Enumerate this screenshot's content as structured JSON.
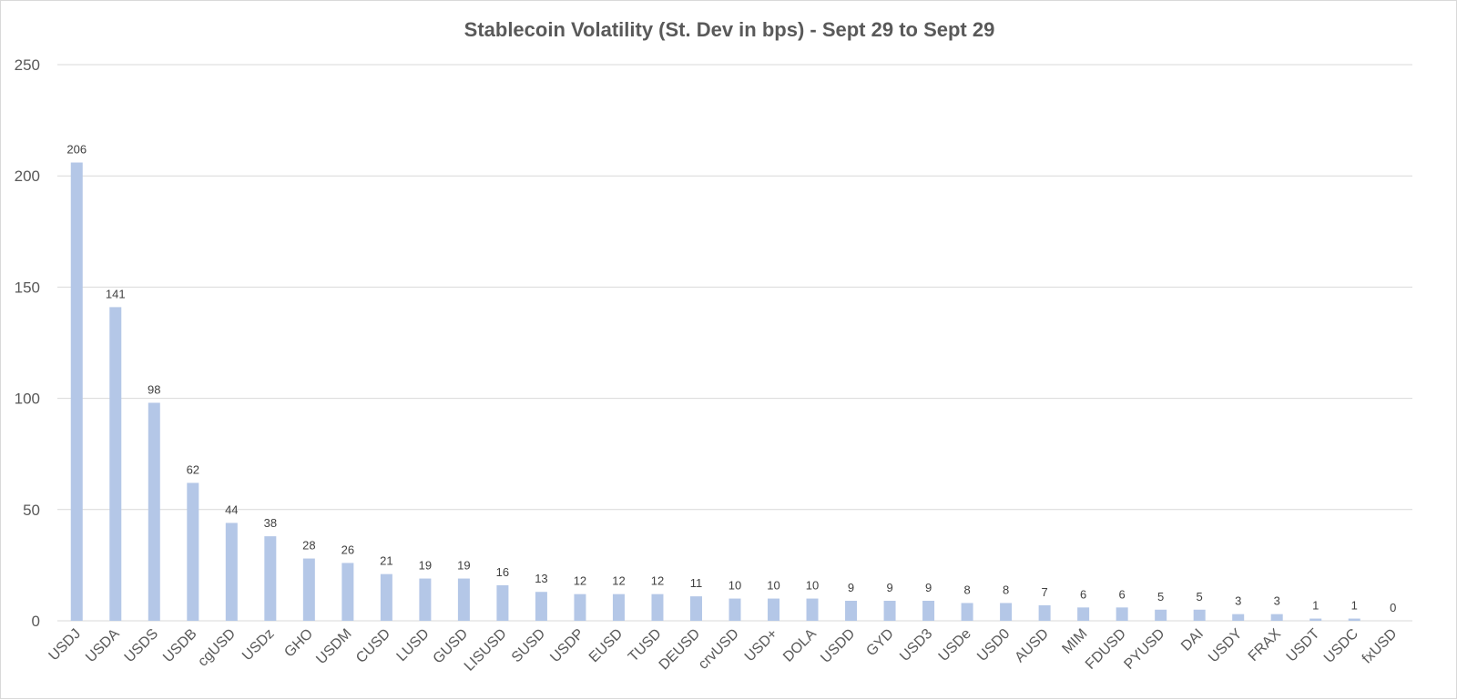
{
  "chart_data": {
    "type": "bar",
    "title": "Stablecoin Volatility (St. Dev in bps) - Sept 29 to Sept 29",
    "xlabel": "",
    "ylabel": "",
    "ylim": [
      0,
      250
    ],
    "yticks": [
      0,
      50,
      100,
      150,
      200,
      250
    ],
    "grid": true,
    "legend": "none",
    "bar_color": "#b4c7e7",
    "categories": [
      "USDJ",
      "USDA",
      "USDS",
      "USDB",
      "cgUSD",
      "USDz",
      "GHO",
      "USDM",
      "CUSD",
      "LUSD",
      "GUSD",
      "LISUSD",
      "SUSD",
      "USDP",
      "EUSD",
      "TUSD",
      "DEUSD",
      "crvUSD",
      "USD+",
      "DOLA",
      "USDD",
      "GYD",
      "USD3",
      "USDe",
      "USD0",
      "AUSD",
      "MIM",
      "FDUSD",
      "PYUSD",
      "DAI",
      "USDY",
      "FRAX",
      "USDT",
      "USDC",
      "fxUSD"
    ],
    "values": [
      206,
      141,
      98,
      62,
      44,
      38,
      28,
      26,
      21,
      19,
      19,
      16,
      13,
      12,
      12,
      12,
      11,
      10,
      10,
      10,
      9,
      9,
      9,
      8,
      8,
      7,
      6,
      6,
      5,
      5,
      3,
      3,
      1,
      1,
      0
    ],
    "data_labels": [
      "206",
      "141",
      "98",
      "62",
      "44",
      "38",
      "28",
      "26",
      "21",
      "19",
      "19",
      "16",
      "13",
      "12",
      "12",
      "12",
      "11",
      "10",
      "10",
      "10",
      "9",
      "9",
      "9",
      "8",
      "8",
      "7",
      "6",
      "6",
      "5",
      "5",
      "3",
      "3",
      "1",
      "1",
      "0"
    ]
  }
}
